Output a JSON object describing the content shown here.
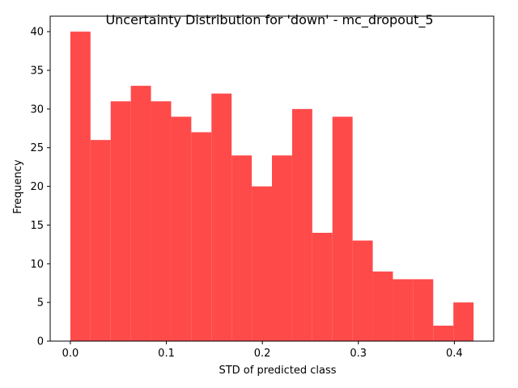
{
  "chart_data": {
    "type": "bar",
    "subtype": "histogram",
    "title": "Uncertainty Distribution for 'down' - mc_dropout_5",
    "xlabel": "STD of predicted class",
    "ylabel": "Frequency",
    "bin_start": 0.0,
    "bin_width": 0.021,
    "values": [
      40,
      26,
      31,
      33,
      31,
      29,
      27,
      32,
      24,
      20,
      24,
      30,
      14,
      29,
      13,
      9,
      8,
      8,
      2,
      5
    ],
    "xlim": [
      -0.021,
      0.441
    ],
    "ylim": [
      0,
      42
    ],
    "xticks": [
      0.0,
      0.1,
      0.2,
      0.3,
      0.4
    ],
    "xtick_labels": [
      "0.0",
      "0.1",
      "0.2",
      "0.3",
      "0.4"
    ],
    "yticks": [
      0,
      5,
      10,
      15,
      20,
      25,
      30,
      35,
      40
    ],
    "ytick_labels": [
      "0",
      "5",
      "10",
      "15",
      "20",
      "25",
      "30",
      "35",
      "40"
    ],
    "bar_color": "#ff4a4a",
    "grid": false,
    "legend": false
  }
}
